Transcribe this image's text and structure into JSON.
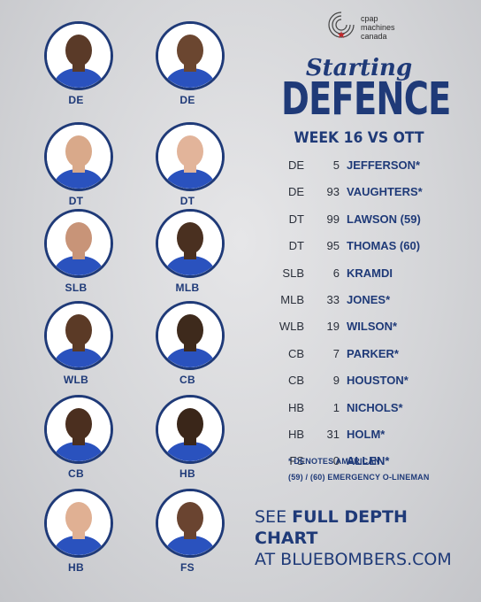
{
  "brand": {
    "line1": "cpap",
    "line2": "machines",
    "line3": "canada"
  },
  "header": {
    "script_title": "Starting",
    "title": "DEFENCE",
    "subtitle": "WEEK 16 VS OTT"
  },
  "players": [
    {
      "position": "DE"
    },
    {
      "position": "DE"
    },
    {
      "position": "DT"
    },
    {
      "position": "DT"
    },
    {
      "position": "SLB"
    },
    {
      "position": "MLB"
    },
    {
      "position": "WLB"
    },
    {
      "position": "CB"
    },
    {
      "position": "CB"
    },
    {
      "position": "HB"
    },
    {
      "position": "HB"
    },
    {
      "position": "FS"
    }
  ],
  "roster": [
    {
      "pos": "DE",
      "num": "5",
      "name": "JEFFERSON*"
    },
    {
      "pos": "DE",
      "num": "93",
      "name": "VAUGHTERS*"
    },
    {
      "pos": "DT",
      "num": "99",
      "name": "LAWSON (59)"
    },
    {
      "pos": "DT",
      "num": "95",
      "name": "THOMAS (60)"
    },
    {
      "pos": "SLB",
      "num": "6",
      "name": "KRAMDI"
    },
    {
      "pos": "MLB",
      "num": "33",
      "name": "JONES*"
    },
    {
      "pos": "WLB",
      "num": "19",
      "name": "WILSON*"
    },
    {
      "pos": "CB",
      "num": "7",
      "name": "PARKER*"
    },
    {
      "pos": "CB",
      "num": "9",
      "name": "HOUSTON*"
    },
    {
      "pos": "HB",
      "num": "1",
      "name": "NICHOLS*"
    },
    {
      "pos": "HB",
      "num": "31",
      "name": "HOLM*"
    },
    {
      "pos": "FS",
      "num": "0",
      "name": "ALLEN*"
    }
  ],
  "notes": {
    "american": "* DENOTES AMERICAN",
    "emergency": "(59) / (60) EMERGENCY O-LINEMAN"
  },
  "cta": {
    "line1_prefix": "SEE ",
    "line1_bold": "FULL DEPTH CHART",
    "line2": "AT BLUEBOMBERS.COM"
  },
  "colors": {
    "primary": "#1f3a78",
    "background": "#d6d7da",
    "jersey": "#2a52be"
  }
}
